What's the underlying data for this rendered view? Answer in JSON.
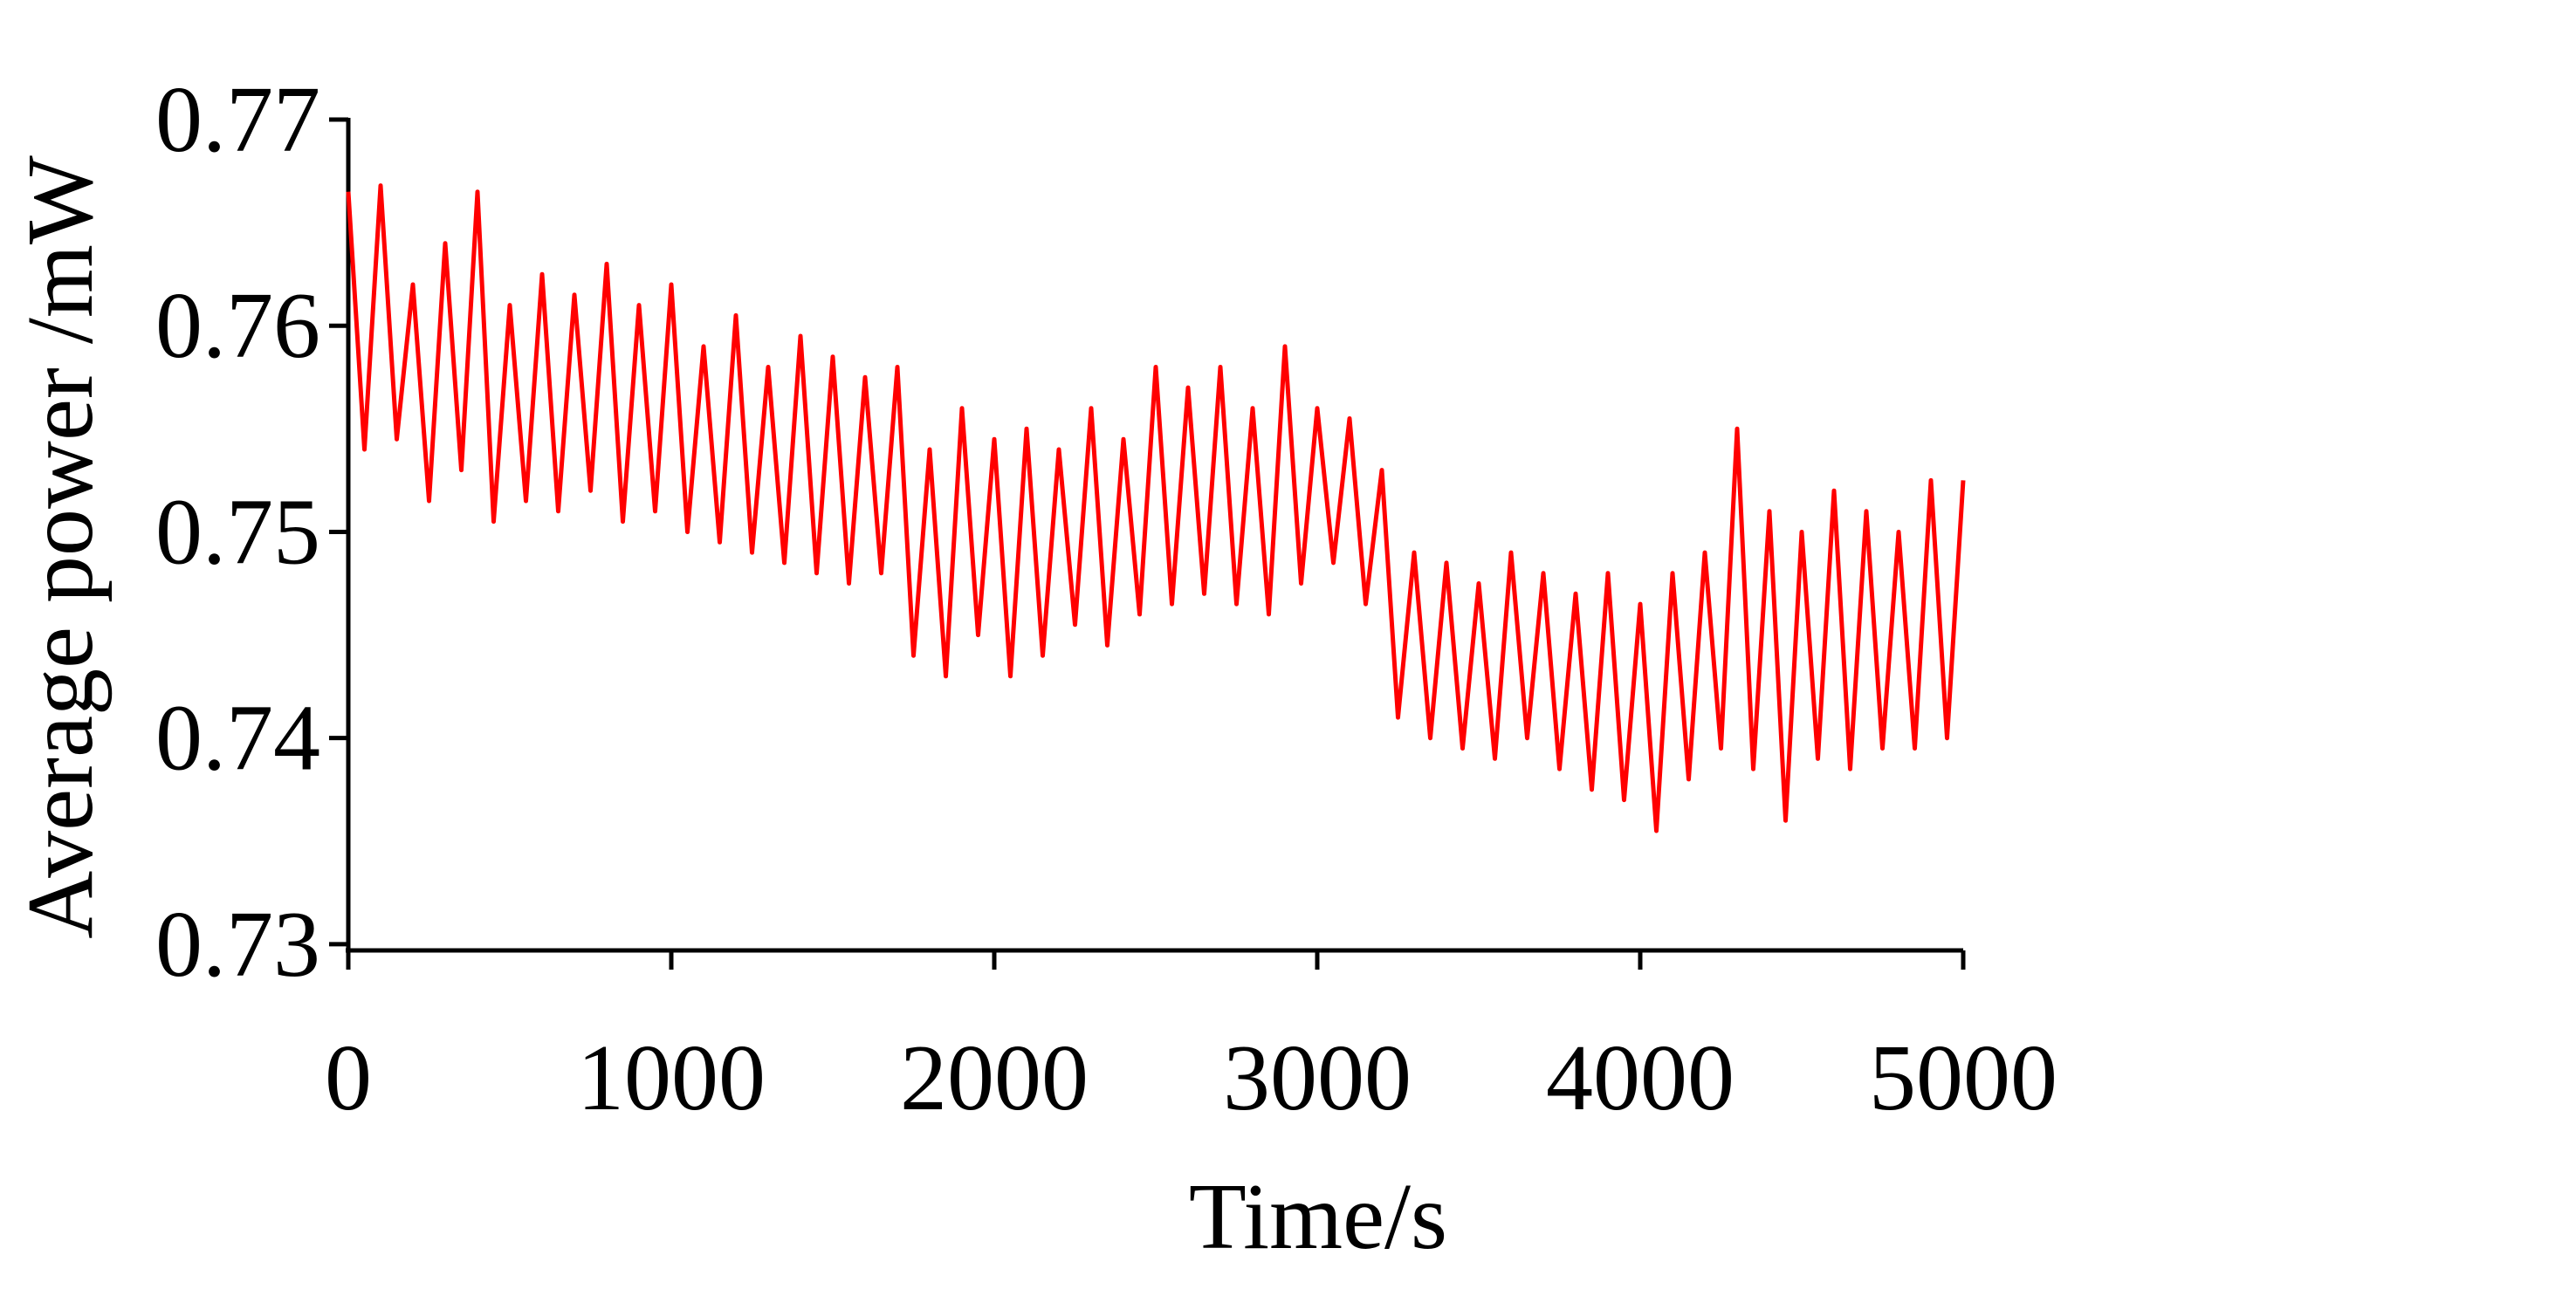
{
  "chart_data": {
    "type": "line",
    "x_label": "Time/s",
    "y_label": "Average power /mW",
    "xlim": [
      0,
      5000
    ],
    "ylim": [
      0.7297,
      0.77
    ],
    "xticks": [
      0,
      1000,
      2000,
      3000,
      4000,
      5000
    ],
    "yticks": [
      0.73,
      0.74,
      0.75,
      0.76,
      0.77
    ],
    "grid": false,
    "series": [
      {
        "color": "#ff0000",
        "x": [
          0,
          50,
          100,
          150,
          200,
          250,
          300,
          350,
          400,
          450,
          500,
          550,
          600,
          650,
          700,
          750,
          800,
          850,
          900,
          950,
          1000,
          1050,
          1100,
          1150,
          1200,
          1250,
          1300,
          1350,
          1400,
          1450,
          1500,
          1550,
          1600,
          1650,
          1700,
          1750,
          1800,
          1850,
          1900,
          1950,
          2000,
          2050,
          2100,
          2150,
          2200,
          2250,
          2300,
          2350,
          2400,
          2450,
          2500,
          2550,
          2600,
          2650,
          2700,
          2750,
          2800,
          2850,
          2900,
          2950,
          3000,
          3050,
          3100,
          3150,
          3200,
          3250,
          3300,
          3350,
          3400,
          3450,
          3500,
          3550,
          3600,
          3650,
          3700,
          3750,
          3800,
          3850,
          3900,
          3950,
          4000,
          4050,
          4100,
          4150,
          4200,
          4250,
          4300,
          4350,
          4400,
          4450,
          4500,
          4550,
          4600,
          4650,
          4700,
          4750,
          4800,
          4850,
          4900,
          4950,
          5000
        ],
        "values": [
          0.7665,
          0.754,
          0.7668,
          0.7545,
          0.762,
          0.7515,
          0.764,
          0.753,
          0.7665,
          0.7505,
          0.761,
          0.7515,
          0.7625,
          0.751,
          0.7615,
          0.752,
          0.763,
          0.7505,
          0.761,
          0.751,
          0.762,
          0.75,
          0.759,
          0.7495,
          0.7605,
          0.749,
          0.758,
          0.7485,
          0.7595,
          0.748,
          0.7585,
          0.7475,
          0.7575,
          0.748,
          0.758,
          0.744,
          0.754,
          0.743,
          0.756,
          0.745,
          0.7545,
          0.743,
          0.755,
          0.744,
          0.754,
          0.7455,
          0.756,
          0.7445,
          0.7545,
          0.746,
          0.758,
          0.7465,
          0.757,
          0.747,
          0.758,
          0.7465,
          0.756,
          0.746,
          0.759,
          0.7475,
          0.756,
          0.7485,
          0.7555,
          0.7465,
          0.753,
          0.741,
          0.749,
          0.74,
          0.7485,
          0.7395,
          0.7475,
          0.739,
          0.749,
          0.74,
          0.748,
          0.7385,
          0.747,
          0.7375,
          0.748,
          0.737,
          0.7465,
          0.7355,
          0.748,
          0.738,
          0.749,
          0.7395,
          0.755,
          0.7385,
          0.751,
          0.736,
          0.75,
          0.739,
          0.752,
          0.7385,
          0.751,
          0.7395,
          0.75,
          0.7395,
          0.7525,
          0.74,
          0.7525
        ]
      }
    ]
  }
}
